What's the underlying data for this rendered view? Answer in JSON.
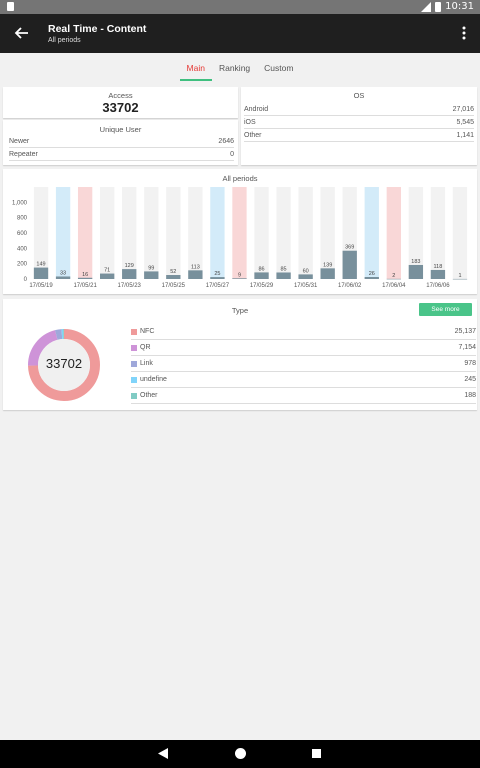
{
  "status": {
    "time": "10:31"
  },
  "appbar": {
    "title": "Real Time - Content",
    "subtitle": "All periods"
  },
  "tabs": [
    {
      "label": "Main",
      "active": true
    },
    {
      "label": "Ranking",
      "active": false
    },
    {
      "label": "Custom",
      "active": false
    }
  ],
  "access": {
    "label": "Access",
    "value": "33702"
  },
  "unique_user": {
    "label": "Unique User",
    "rows": [
      {
        "label": "Newer",
        "value": "2646"
      },
      {
        "label": "Repeater",
        "value": "0"
      }
    ]
  },
  "os": {
    "label": "OS",
    "rows": [
      {
        "label": "Android",
        "value": "27,016"
      },
      {
        "label": "iOS",
        "value": "5,545"
      },
      {
        "label": "Other",
        "value": "1,141"
      }
    ]
  },
  "chart_data": {
    "type": "bar",
    "title": "All periods",
    "ylim": [
      0,
      1200
    ],
    "yticks": [
      "0",
      "200",
      "400",
      "600",
      "800",
      "1,000"
    ],
    "ytick_values": [
      0,
      200,
      400,
      600,
      800,
      1000
    ],
    "x_tick_labels": [
      "17/05/19",
      "17/05/21",
      "17/05/23",
      "17/05/25",
      "17/05/27",
      "17/05/29",
      "17/05/31",
      "17/06/02",
      "17/06/04",
      "17/06/06"
    ],
    "values": [
      149,
      33,
      16,
      71,
      129,
      99,
      52,
      113,
      25,
      9,
      86,
      85,
      60,
      139,
      369,
      26,
      2,
      183,
      118,
      1
    ],
    "value_labels": [
      "149",
      "33",
      "16",
      "71",
      "129",
      "99",
      "52",
      "113",
      "25",
      "9",
      "86",
      "85",
      "60",
      "139",
      "369",
      "26",
      "2",
      "183",
      "118",
      "1"
    ],
    "highlight": [
      "none",
      "blue",
      "red",
      "none",
      "none",
      "none",
      "none",
      "none",
      "blue",
      "red",
      "none",
      "none",
      "none",
      "none",
      "none",
      "blue",
      "red",
      "none",
      "none",
      "none"
    ],
    "colors": {
      "bar": "#78909c",
      "bg": "#f2f2f2",
      "blue": "#d3ebf9",
      "red": "#f9d7d7"
    }
  },
  "type_card": {
    "label": "Type",
    "see_more": "See more",
    "total": "33702",
    "rows": [
      {
        "label": "NFC",
        "value": "25,137",
        "color": "#ef9a9a",
        "amount": 25137
      },
      {
        "label": "QR",
        "value": "7,154",
        "color": "#ce93d8",
        "amount": 7154
      },
      {
        "label": "Link",
        "value": "978",
        "color": "#9fa8da",
        "amount": 978
      },
      {
        "label": "undefine",
        "value": "245",
        "color": "#81d4fa",
        "amount": 245
      },
      {
        "label": "Other",
        "value": "188",
        "color": "#80cbc4",
        "amount": 188
      }
    ]
  }
}
